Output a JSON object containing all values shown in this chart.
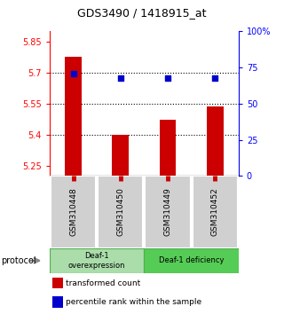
{
  "title": "GDS3490 / 1418915_at",
  "samples": [
    "GSM310448",
    "GSM310450",
    "GSM310449",
    "GSM310452"
  ],
  "bar_values": [
    5.775,
    5.4,
    5.47,
    5.535
  ],
  "percentile_values": [
    70.5,
    68,
    68,
    68
  ],
  "bar_color": "#cc0000",
  "dot_color": "#0000cc",
  "ylim_left": [
    5.2,
    5.9
  ],
  "ylim_right": [
    0,
    100
  ],
  "yticks_left": [
    5.25,
    5.4,
    5.55,
    5.7,
    5.85
  ],
  "ytick_labels_left": [
    "5.25",
    "5.4",
    "5.55",
    "5.7",
    "5.85"
  ],
  "yticks_right": [
    0,
    25,
    50,
    75,
    100
  ],
  "ytick_labels_right": [
    "0",
    "25",
    "50",
    "75",
    "100%"
  ],
  "hlines": [
    5.7,
    5.55,
    5.4
  ],
  "bar_color_legend": "#cc0000",
  "dot_color_legend": "#0000cc",
  "bar_bottom": 5.2,
  "group1_label": "Deaf-1\noverexpression",
  "group2_label": "Deaf-1 deficiency",
  "group1_color": "#aaddaa",
  "group2_color": "#55cc55",
  "xtick_bg": "#d0d0d0",
  "protocol_text": "protocol"
}
